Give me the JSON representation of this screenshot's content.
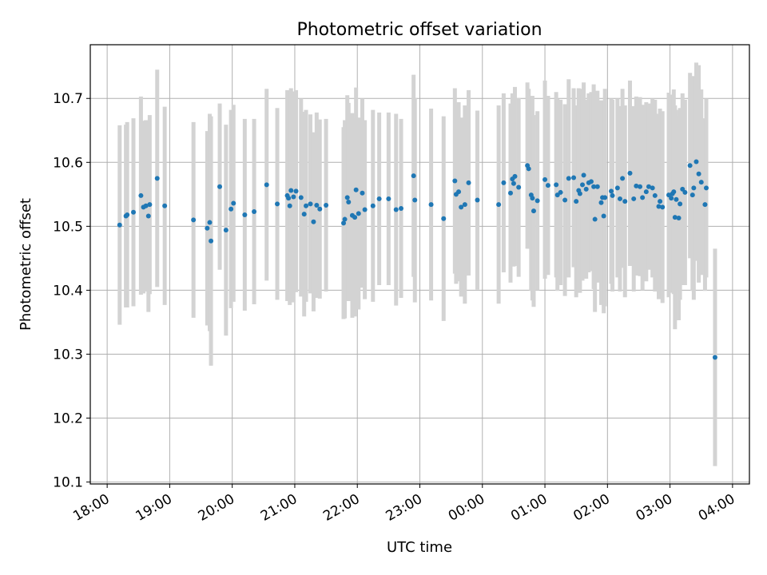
{
  "chart_data": {
    "type": "scatter",
    "title": "Photometric offset variation",
    "xlabel": "UTC time",
    "ylabel": "Photometric offset",
    "x_unit": "hours since 18:00 UTC",
    "xlim": [
      -0.27,
      10.27
    ],
    "ylim": [
      10.097,
      10.784
    ],
    "grid": true,
    "x_ticks": [
      {
        "value": 0,
        "label": "18:00"
      },
      {
        "value": 1,
        "label": "19:00"
      },
      {
        "value": 2,
        "label": "20:00"
      },
      {
        "value": 3,
        "label": "21:00"
      },
      {
        "value": 4,
        "label": "22:00"
      },
      {
        "value": 5,
        "label": "23:00"
      },
      {
        "value": 6,
        "label": "00:00"
      },
      {
        "value": 7,
        "label": "01:00"
      },
      {
        "value": 8,
        "label": "02:00"
      },
      {
        "value": 9,
        "label": "03:00"
      },
      {
        "value": 10,
        "label": "04:00"
      }
    ],
    "y_ticks": [
      {
        "value": 10.1,
        "label": "10.1"
      },
      {
        "value": 10.2,
        "label": "10.2"
      },
      {
        "value": 10.3,
        "label": "10.3"
      },
      {
        "value": 10.4,
        "label": "10.4"
      },
      {
        "value": 10.5,
        "label": "10.5"
      },
      {
        "value": 10.6,
        "label": "10.6"
      },
      {
        "value": 10.7,
        "label": "10.7"
      }
    ],
    "colors": {
      "points": "#1f77b4",
      "errorbars": "#d3d3d3",
      "grid": "#b0b0b0"
    },
    "series": [
      {
        "name": "photometric offset",
        "points": [
          [
            0.2,
            10.502,
            0.156
          ],
          [
            0.3,
            10.516,
            0.143
          ],
          [
            0.32,
            10.518,
            0.145
          ],
          [
            0.42,
            10.522,
            0.147
          ],
          [
            0.54,
            10.548,
            0.155
          ],
          [
            0.58,
            10.53,
            0.135
          ],
          [
            0.62,
            10.532,
            0.134
          ],
          [
            0.66,
            10.516,
            0.15
          ],
          [
            0.68,
            10.534,
            0.14
          ],
          [
            0.8,
            10.575,
            0.17
          ],
          [
            0.92,
            10.532,
            0.155
          ],
          [
            1.38,
            10.51,
            0.153
          ],
          [
            1.6,
            10.497,
            0.152
          ],
          [
            1.64,
            10.506,
            0.17
          ],
          [
            1.66,
            10.477,
            0.195
          ],
          [
            1.8,
            10.562,
            0.13
          ],
          [
            1.9,
            10.494,
            0.165
          ],
          [
            1.98,
            10.527,
            0.155
          ],
          [
            2.02,
            10.536,
            0.154
          ],
          [
            2.2,
            10.518,
            0.15
          ],
          [
            2.35,
            10.523,
            0.145
          ],
          [
            2.55,
            10.565,
            0.15
          ],
          [
            2.72,
            10.535,
            0.15
          ],
          [
            2.88,
            10.548,
            0.165
          ],
          [
            2.9,
            10.544,
            0.16
          ],
          [
            2.92,
            10.532,
            0.155
          ],
          [
            2.94,
            10.556,
            0.16
          ],
          [
            2.98,
            10.546,
            0.165
          ],
          [
            3.02,
            10.555,
            0.158
          ],
          [
            3.1,
            10.545,
            0.155
          ],
          [
            3.15,
            10.519,
            0.16
          ],
          [
            3.18,
            10.532,
            0.15
          ],
          [
            3.25,
            10.535,
            0.14
          ],
          [
            3.3,
            10.507,
            0.14
          ],
          [
            3.35,
            10.533,
            0.145
          ],
          [
            3.4,
            10.527,
            0.14
          ],
          [
            3.5,
            10.533,
            0.135
          ],
          [
            3.78,
            10.505,
            0.15
          ],
          [
            3.8,
            10.511,
            0.155
          ],
          [
            3.84,
            10.545,
            0.16
          ],
          [
            3.86,
            10.538,
            0.155
          ],
          [
            3.92,
            10.517,
            0.16
          ],
          [
            3.96,
            10.514,
            0.155
          ],
          [
            3.98,
            10.557,
            0.16
          ],
          [
            4.02,
            10.52,
            0.15
          ],
          [
            4.08,
            10.552,
            0.148
          ],
          [
            4.12,
            10.526,
            0.14
          ],
          [
            4.25,
            10.532,
            0.15
          ],
          [
            4.35,
            10.543,
            0.135
          ],
          [
            4.5,
            10.543,
            0.135
          ],
          [
            4.62,
            10.526,
            0.15
          ],
          [
            4.7,
            10.528,
            0.14
          ],
          [
            4.9,
            10.579,
            0.158
          ],
          [
            4.92,
            10.541,
            0.16
          ],
          [
            5.18,
            10.534,
            0.15
          ],
          [
            5.38,
            10.512,
            0.16
          ],
          [
            5.56,
            10.571,
            0.145
          ],
          [
            5.58,
            10.55,
            0.14
          ],
          [
            5.62,
            10.554,
            0.14
          ],
          [
            5.66,
            10.53,
            0.14
          ],
          [
            5.72,
            10.534,
            0.155
          ],
          [
            5.78,
            10.568,
            0.145
          ],
          [
            5.92,
            10.541,
            0.14
          ],
          [
            6.26,
            10.534,
            0.155
          ],
          [
            6.34,
            10.568,
            0.14
          ],
          [
            6.45,
            10.552,
            0.14
          ],
          [
            6.48,
            10.574,
            0.134
          ],
          [
            6.5,
            10.567,
            0.13
          ],
          [
            6.52,
            10.578,
            0.14
          ],
          [
            6.58,
            10.561,
            0.14
          ],
          [
            6.72,
            10.595,
            0.13
          ],
          [
            6.74,
            10.59,
            0.125
          ],
          [
            6.78,
            10.549,
            0.15
          ],
          [
            6.8,
            10.544,
            0.16
          ],
          [
            6.82,
            10.524,
            0.15
          ],
          [
            6.88,
            10.54,
            0.14
          ],
          [
            7.0,
            10.573,
            0.155
          ],
          [
            7.05,
            10.564,
            0.14
          ],
          [
            7.18,
            10.565,
            0.145
          ],
          [
            7.2,
            10.549,
            0.15
          ],
          [
            7.25,
            10.553,
            0.145
          ],
          [
            7.32,
            10.541,
            0.15
          ],
          [
            7.38,
            10.575,
            0.155
          ],
          [
            7.46,
            10.576,
            0.14
          ],
          [
            7.5,
            10.539,
            0.15
          ],
          [
            7.54,
            10.556,
            0.16
          ],
          [
            7.56,
            10.551,
            0.155
          ],
          [
            7.6,
            10.565,
            0.15
          ],
          [
            7.62,
            10.58,
            0.145
          ],
          [
            7.66,
            10.558,
            0.14
          ],
          [
            7.7,
            10.568,
            0.14
          ],
          [
            7.74,
            10.57,
            0.14
          ],
          [
            7.78,
            10.562,
            0.16
          ],
          [
            7.8,
            10.511,
            0.145
          ],
          [
            7.84,
            10.562,
            0.15
          ],
          [
            7.9,
            10.537,
            0.16
          ],
          [
            7.92,
            10.545,
            0.15
          ],
          [
            7.94,
            10.516,
            0.152
          ],
          [
            7.96,
            10.545,
            0.17
          ],
          [
            8.06,
            10.555,
            0.145
          ],
          [
            8.08,
            10.548,
            0.15
          ],
          [
            8.16,
            10.56,
            0.14
          ],
          [
            8.2,
            10.543,
            0.145
          ],
          [
            8.24,
            10.575,
            0.14
          ],
          [
            8.28,
            10.539,
            0.15
          ],
          [
            8.36,
            10.583,
            0.145
          ],
          [
            8.42,
            10.543,
            0.145
          ],
          [
            8.46,
            10.563,
            0.14
          ],
          [
            8.52,
            10.562,
            0.14
          ],
          [
            8.56,
            10.545,
            0.145
          ],
          [
            8.62,
            10.554,
            0.14
          ],
          [
            8.66,
            10.562,
            0.13
          ],
          [
            8.72,
            10.56,
            0.14
          ],
          [
            8.76,
            10.548,
            0.15
          ],
          [
            8.82,
            10.531,
            0.145
          ],
          [
            8.84,
            10.539,
            0.145
          ],
          [
            8.88,
            10.53,
            0.15
          ],
          [
            8.98,
            10.549,
            0.16
          ],
          [
            9.02,
            10.544,
            0.14
          ],
          [
            9.04,
            10.551,
            0.155
          ],
          [
            9.06,
            10.554,
            0.16
          ],
          [
            9.08,
            10.514,
            0.175
          ],
          [
            9.1,
            10.542,
            0.14
          ],
          [
            9.14,
            10.513,
            0.16
          ],
          [
            9.16,
            10.535,
            0.15
          ],
          [
            9.2,
            10.558,
            0.15
          ],
          [
            9.24,
            10.553,
            0.145
          ],
          [
            9.32,
            10.595,
            0.145
          ],
          [
            9.36,
            10.549,
            0.15
          ],
          [
            9.38,
            10.56,
            0.175
          ],
          [
            9.42,
            10.601,
            0.155
          ],
          [
            9.46,
            10.582,
            0.17
          ],
          [
            9.5,
            10.569,
            0.145
          ],
          [
            9.56,
            10.534,
            0.135
          ],
          [
            9.58,
            10.56,
            0.14
          ],
          [
            9.72,
            10.295,
            0.17
          ]
        ]
      }
    ]
  }
}
